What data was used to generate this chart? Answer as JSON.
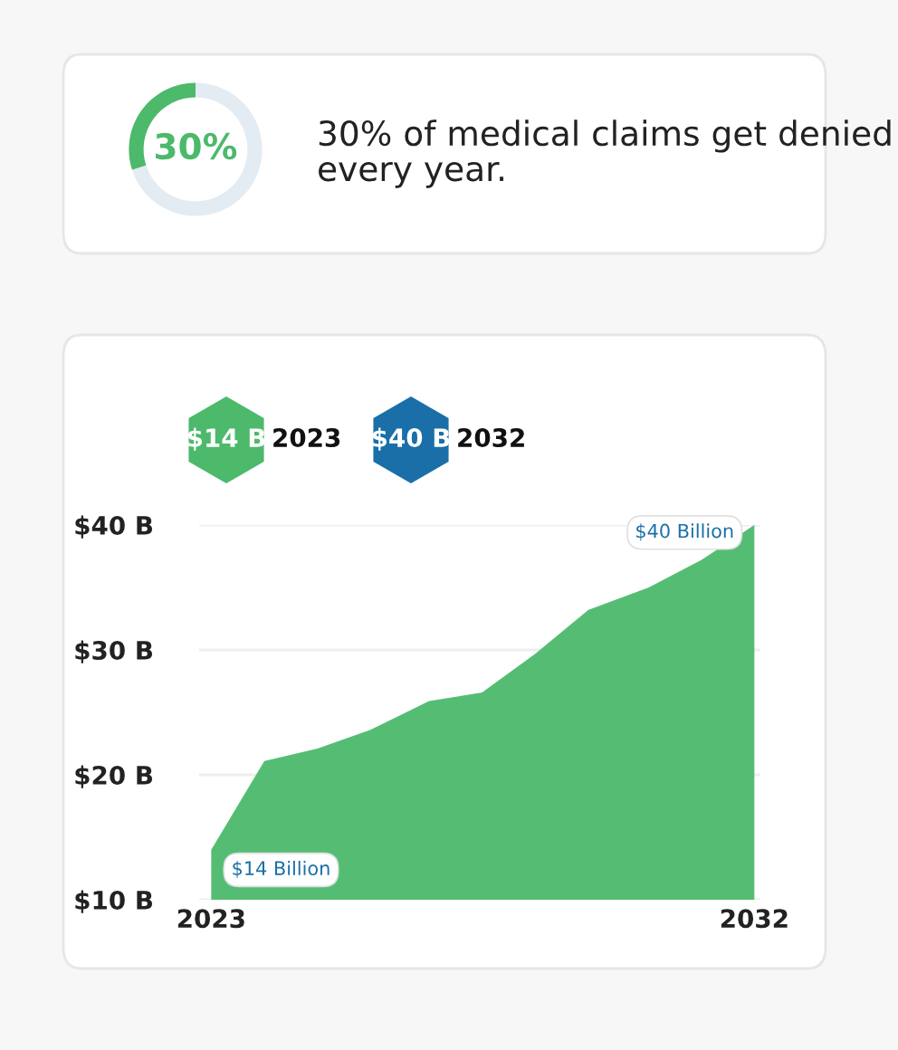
{
  "chart_data": [
    {
      "type": "donut",
      "title": "30% of medical claims get denied every year.",
      "categories": [
        null,
        null
      ],
      "values": [
        30,
        70
      ],
      "colors": [
        "#4cb96b",
        "#e3ebf3"
      ],
      "annotations": [
        "30%"
      ]
    },
    {
      "type": "area",
      "x": [
        2023,
        2023.88,
        2024.76,
        2025.64,
        2026.61,
        2027.49,
        2028.37,
        2029.25,
        2030.25,
        2031.12,
        2032
      ],
      "series": [
        {
          "color": "#4cb96b",
          "values": [
            14,
            21.1,
            22.1,
            23.6,
            25.9,
            26.6,
            29.7,
            33.2,
            35.0,
            37.2,
            40
          ]
        }
      ],
      "xlim": [
        2022.8,
        2032.1
      ],
      "xticks": [
        2023,
        2032
      ],
      "ylim": [
        10,
        40
      ],
      "yticks": [
        {
          "value": 10,
          "label": "$10 B"
        },
        {
          "value": 20,
          "label": "$20 B"
        },
        {
          "value": 30,
          "label": "$30 B"
        },
        {
          "value": 40,
          "label": "$40 B"
        }
      ],
      "grid": "y",
      "annotations": [
        "$14 B",
        "2023",
        "$40 B",
        "2032",
        {
          "text": "$14 Billion",
          "x": 2023,
          "y": 14
        },
        {
          "text": "$40 Billion",
          "x": 2032,
          "y": 40
        }
      ]
    }
  ]
}
